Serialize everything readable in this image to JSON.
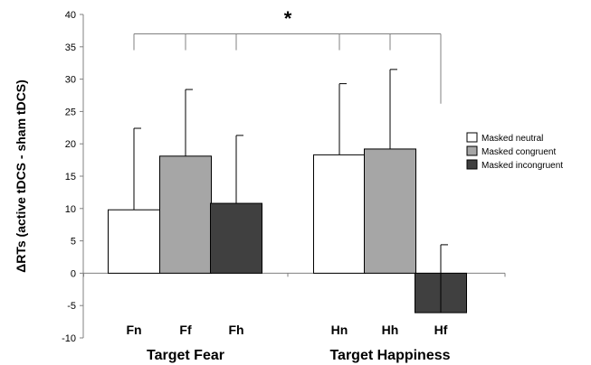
{
  "chart_data": {
    "type": "bar",
    "ylabel": "ΔRTs (active tDCS - sham tDCS)",
    "ylim": [
      -10,
      40
    ],
    "yticks": [
      -10,
      -5,
      0,
      5,
      10,
      15,
      20,
      25,
      30,
      35,
      40
    ],
    "grid": false,
    "legend_position": "right",
    "categories": [
      "Fn",
      "Ff",
      "Fh",
      "Hn",
      "Hh",
      "Hf"
    ],
    "groups": [
      {
        "label": "Target Fear",
        "categories": [
          "Fn",
          "Ff",
          "Fh"
        ]
      },
      {
        "label": "Target Happiness",
        "categories": [
          "Hn",
          "Hh",
          "Hf"
        ]
      }
    ],
    "series": [
      {
        "name": "Masked neutral",
        "color": "#ffffff"
      },
      {
        "name": "Masked congruent",
        "color": "#a6a6a6"
      },
      {
        "name": "Masked incongruent",
        "color": "#404040"
      }
    ],
    "bars": [
      {
        "category": "Fn",
        "series": "Masked neutral",
        "value": 9.8,
        "error": 12.6
      },
      {
        "category": "Ff",
        "series": "Masked congruent",
        "value": 18.1,
        "error": 10.3
      },
      {
        "category": "Fh",
        "series": "Masked incongruent",
        "value": 10.8,
        "error": 10.5
      },
      {
        "category": "Hn",
        "series": "Masked neutral",
        "value": 18.3,
        "error": 11.0
      },
      {
        "category": "Hh",
        "series": "Masked congruent",
        "value": 19.2,
        "error": 12.3
      },
      {
        "category": "Hf",
        "series": "Masked incongruent",
        "value": -6.1,
        "error": 10.5
      }
    ],
    "significance": {
      "label": "*",
      "bracket_top": 37,
      "from": [
        "Fn",
        "Ff",
        "Fh"
      ],
      "to": [
        "Hn",
        "Hh",
        "Hf"
      ]
    }
  }
}
